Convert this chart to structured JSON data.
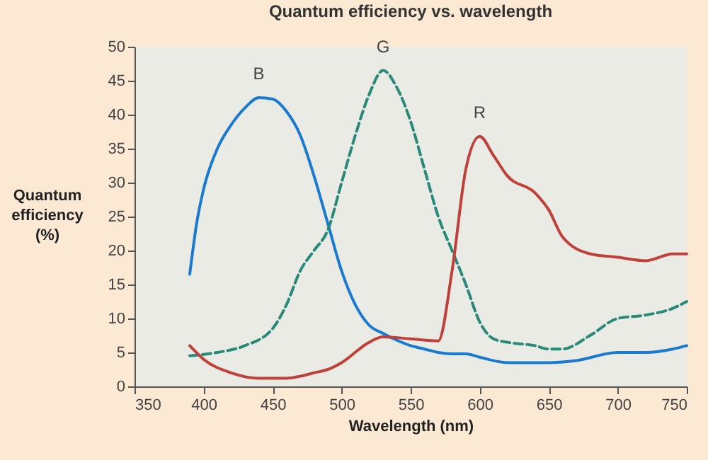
{
  "chart_data": {
    "type": "line",
    "title": "Quantum efficiency vs. wavelength",
    "xlabel": "Wavelength (nm)",
    "ylabel": "Quantum\nefficiency\n(%)",
    "xlim": [
      350,
      750
    ],
    "xticks": [
      350,
      400,
      450,
      500,
      550,
      600,
      650,
      700,
      750
    ],
    "ylim": [
      0,
      50
    ],
    "yticks": [
      0,
      5,
      10,
      15,
      20,
      25,
      30,
      35,
      40,
      45,
      50
    ],
    "grid": false,
    "line_style": "solid",
    "series": [
      {
        "name": "B",
        "color": "#1a7ad0",
        "x": [
          390,
          395,
          400,
          410,
          420,
          430,
          440,
          450,
          460,
          470,
          480,
          490,
          500,
          510,
          520,
          530,
          540,
          550,
          560,
          570,
          580,
          590,
          600,
          620,
          650,
          670,
          700,
          720,
          740,
          750
        ],
        "values": [
          16.5,
          24,
          29,
          35,
          38.5,
          41,
          42.5,
          42.3,
          40.5,
          37,
          31,
          24,
          17,
          12,
          9,
          7.8,
          6.8,
          6,
          5.5,
          5,
          4.8,
          4.8,
          4.3,
          3.5,
          3.5,
          3.8,
          5,
          5,
          5.5,
          6
        ]
      },
      {
        "name": "G",
        "color": "#2a8a7a",
        "line_style": "dashed",
        "x": [
          390,
          410,
          430,
          450,
          460,
          470,
          480,
          490,
          500,
          510,
          520,
          530,
          540,
          550,
          560,
          570,
          580,
          590,
          600,
          610,
          620,
          640,
          650,
          660,
          680,
          700,
          720,
          740,
          750
        ],
        "values": [
          4.5,
          5,
          6,
          8.5,
          12,
          17,
          20,
          23,
          30,
          37,
          43,
          46.5,
          44,
          39,
          32,
          25,
          20,
          15,
          9.5,
          7,
          6.5,
          6,
          5.5,
          5.5,
          7.5,
          10,
          10.5,
          11.5,
          12.5
        ]
      },
      {
        "name": "R",
        "color": "#c0403a",
        "x": [
          390,
          400,
          420,
          440,
          460,
          470,
          480,
          490,
          500,
          520,
          530,
          550,
          570,
          580,
          590,
          600,
          610,
          620,
          640,
          650,
          660,
          680,
          700,
          720,
          740,
          750
        ],
        "values": [
          6,
          4,
          2,
          1.2,
          1.2,
          1.5,
          2,
          2.5,
          3.5,
          6.5,
          7.3,
          7,
          6.7,
          17,
          32,
          36.8,
          34,
          31,
          28.5,
          26,
          22,
          19.5,
          19,
          18.5,
          19.5,
          19.5
        ]
      }
    ]
  }
}
